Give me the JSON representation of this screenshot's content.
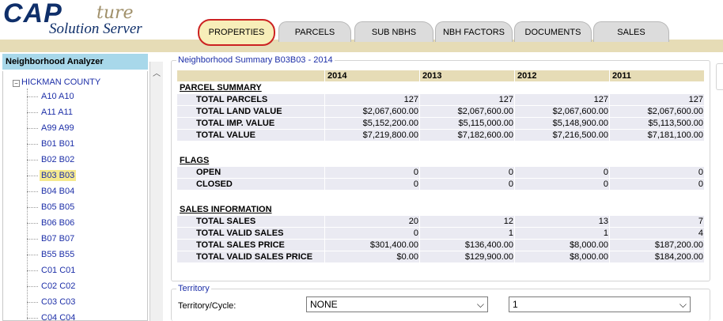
{
  "logo": {
    "cap": "CAP",
    "ture": "ture",
    "sub": "Solution Server"
  },
  "tabs": [
    {
      "label": "PROPERTIES",
      "active": true
    },
    {
      "label": "PARCELS"
    },
    {
      "label": "SUB NBHS"
    },
    {
      "label": "NBH FACTORS"
    },
    {
      "label": "DOCUMENTS"
    },
    {
      "label": "SALES"
    }
  ],
  "left": {
    "title": "Neighborhood Analyzer",
    "root": "HICKMAN COUNTY",
    "root_toggle": "−",
    "items": [
      "A10 A10",
      "A11 A11",
      "A99 A99",
      "B01 B01",
      "B02 B02",
      "B03 B03",
      "B04 B04",
      "B05 B05",
      "B06 B06",
      "B07 B07",
      "B55 B55",
      "C01 C01",
      "C02 C02",
      "C03 C03",
      "C04 C04"
    ],
    "selected": "B03 B03"
  },
  "summary": {
    "legend": "Neighborhood Summary B03B03 - 2014",
    "years": [
      "2014",
      "2013",
      "2012",
      "2011"
    ],
    "sections": [
      {
        "title": "PARCEL SUMMARY",
        "rows": [
          {
            "label": "TOTAL PARCELS",
            "values": [
              "127",
              "127",
              "127",
              "127"
            ]
          },
          {
            "label": "TOTAL LAND VALUE",
            "values": [
              "$2,067,600.00",
              "$2,067,600.00",
              "$2,067,600.00",
              "$2,067,600.00"
            ]
          },
          {
            "label": "TOTAL IMP. VALUE",
            "values": [
              "$5,152,200.00",
              "$5,115,000.00",
              "$5,148,900.00",
              "$5,113,500.00"
            ]
          },
          {
            "label": "TOTAL VALUE",
            "values": [
              "$7,219,800.00",
              "$7,182,600.00",
              "$7,216,500.00",
              "$7,181,100.00"
            ]
          }
        ]
      },
      {
        "title": "FLAGS",
        "rows": [
          {
            "label": "OPEN",
            "values": [
              "0",
              "0",
              "0",
              "0"
            ]
          },
          {
            "label": "CLOSED",
            "values": [
              "0",
              "0",
              "0",
              "0"
            ]
          }
        ]
      },
      {
        "title": "SALES INFORMATION",
        "rows": [
          {
            "label": "TOTAL SALES",
            "values": [
              "20",
              "12",
              "13",
              "7"
            ]
          },
          {
            "label": "TOTAL VALID SALES",
            "values": [
              "0",
              "1",
              "1",
              "4"
            ]
          },
          {
            "label": "TOTAL SALES PRICE",
            "values": [
              "$301,400.00",
              "$136,400.00",
              "$8,000.00",
              "$187,200.00"
            ]
          },
          {
            "label": "TOTAL VALID SALES PRICE",
            "values": [
              "$0.00",
              "$129,900.00",
              "$8,000.00",
              "$184,200.00"
            ]
          }
        ]
      }
    ]
  },
  "territory": {
    "legend": "Territory",
    "label": "Territory/Cycle:",
    "territory_value": "NONE",
    "cycle_value": "1"
  },
  "colors": {
    "tab_bar": "#e6dcb6",
    "header_row": "#e6dcb6",
    "data_row": "#eaeaf2",
    "active_tab_border": "#cc2222",
    "left_title": "#a8d8ea",
    "link": "#1d2fa8"
  }
}
